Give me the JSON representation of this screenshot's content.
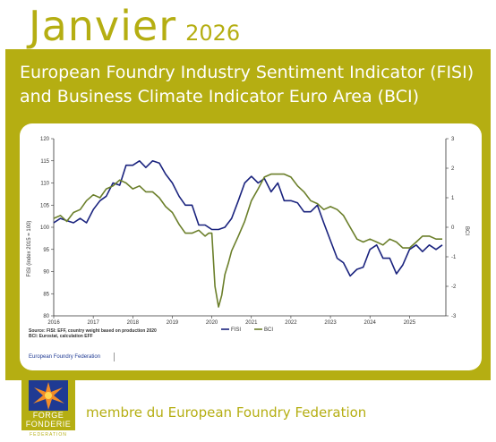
{
  "header": {
    "month": "Janvier",
    "year": "2026"
  },
  "panel": {
    "title_line1": "European Foundry Industry Sentiment Indicator (FISI)",
    "title_line2": "and Business Climate Indicator Euro Area (BCI)"
  },
  "colors": {
    "accent": "#b5ae12",
    "fisi": "#1a237e",
    "bci": "#6b7f2a"
  },
  "footer": {
    "link": "European Foundry Federation",
    "member": "membre du European Foundry Federation"
  },
  "logo": {
    "line1": "FORGE",
    "line2": "FONDERIE",
    "line3": "FEDERATION"
  },
  "chart_data": {
    "type": "line",
    "ylabel_left": "FISI (index 2015 = 100)",
    "ylabel_right": "BCI",
    "ylim_left": [
      80,
      120
    ],
    "ylim_right": [
      -3,
      3
    ],
    "yticks_left": [
      80,
      85,
      90,
      95,
      100,
      105,
      110,
      115,
      120
    ],
    "yticks_right": [
      -3,
      -2,
      -1,
      0,
      1,
      2,
      3
    ],
    "xlim": [
      2016.0,
      2025.92
    ],
    "xticks": [
      "2016",
      "2017",
      "2018",
      "2019",
      "2020",
      "2021",
      "2022",
      "2023",
      "2024",
      "2025"
    ],
    "grid": false,
    "legend": {
      "position": "bottom-center",
      "entries": [
        "FISI",
        "BCI"
      ]
    },
    "source_line1": "Source: FISI: EFF, country weight based on production 2020",
    "source_line2": "BCI: Eurostat, calculation EFF",
    "series": [
      {
        "name": "FISI",
        "axis": "left",
        "color": "#1a237e",
        "x": [
          2016.0,
          2016.17,
          2016.33,
          2016.5,
          2016.67,
          2016.83,
          2017.0,
          2017.17,
          2017.33,
          2017.5,
          2017.67,
          2017.83,
          2018.0,
          2018.17,
          2018.33,
          2018.5,
          2018.67,
          2018.83,
          2019.0,
          2019.17,
          2019.33,
          2019.5,
          2019.67,
          2019.83,
          2020.0,
          2020.17,
          2020.33,
          2020.5,
          2020.67,
          2020.83,
          2021.0,
          2021.17,
          2021.33,
          2021.5,
          2021.67,
          2021.83,
          2022.0,
          2022.17,
          2022.33,
          2022.5,
          2022.67,
          2022.83,
          2023.0,
          2023.17,
          2023.33,
          2023.5,
          2023.67,
          2023.83,
          2024.0,
          2024.17,
          2024.33,
          2024.5,
          2024.67,
          2024.83,
          2025.0,
          2025.17,
          2025.33,
          2025.5,
          2025.67,
          2025.83
        ],
        "y": [
          101,
          102,
          101.5,
          101,
          102,
          101,
          104,
          106,
          107,
          110,
          109.5,
          114,
          114,
          115,
          113.5,
          115,
          114.5,
          112,
          110,
          107,
          105,
          105,
          100.5,
          100.5,
          99.5,
          99.5,
          100,
          102,
          106,
          110,
          111.5,
          110,
          111,
          108,
          110,
          106,
          106,
          105.5,
          103.5,
          103.5,
          105,
          101,
          97,
          93,
          92,
          89,
          90.5,
          91,
          95,
          96,
          93,
          93,
          89.5,
          91.5,
          95,
          96,
          94.5,
          96,
          95,
          96
        ]
      },
      {
        "name": "BCI",
        "axis": "right",
        "color": "#6b7f2a",
        "x": [
          2016.0,
          2016.17,
          2016.33,
          2016.5,
          2016.67,
          2016.83,
          2017.0,
          2017.17,
          2017.33,
          2017.5,
          2017.67,
          2017.83,
          2018.0,
          2018.17,
          2018.33,
          2018.5,
          2018.67,
          2018.83,
          2019.0,
          2019.17,
          2019.33,
          2019.42,
          2019.5,
          2019.67,
          2019.83,
          2019.92,
          2020.0,
          2020.08,
          2020.17,
          2020.25,
          2020.33,
          2020.42,
          2020.5,
          2020.67,
          2020.83,
          2021.0,
          2021.17,
          2021.33,
          2021.5,
          2021.67,
          2021.83,
          2022.0,
          2022.17,
          2022.33,
          2022.5,
          2022.67,
          2022.83,
          2023.0,
          2023.17,
          2023.33,
          2023.5,
          2023.67,
          2023.83,
          2024.0,
          2024.17,
          2024.33,
          2024.5,
          2024.67,
          2024.83,
          2025.0,
          2025.17,
          2025.33,
          2025.5,
          2025.67,
          2025.83
        ],
        "y": [
          0.3,
          0.4,
          0.2,
          0.5,
          0.6,
          0.9,
          1.1,
          1.0,
          1.3,
          1.4,
          1.6,
          1.5,
          1.3,
          1.4,
          1.2,
          1.2,
          1.0,
          0.7,
          0.5,
          0.1,
          -0.2,
          -0.2,
          -0.2,
          -0.1,
          -0.3,
          -0.2,
          -0.2,
          -2.0,
          -2.7,
          -2.3,
          -1.6,
          -1.2,
          -0.8,
          -0.3,
          0.2,
          0.9,
          1.3,
          1.7,
          1.8,
          1.8,
          1.8,
          1.7,
          1.4,
          1.2,
          0.9,
          0.8,
          0.6,
          0.7,
          0.6,
          0.4,
          0.0,
          -0.4,
          -0.5,
          -0.4,
          -0.5,
          -0.6,
          -0.4,
          -0.5,
          -0.7,
          -0.7,
          -0.5,
          -0.3,
          -0.3,
          -0.4,
          -0.4
        ]
      }
    ]
  }
}
